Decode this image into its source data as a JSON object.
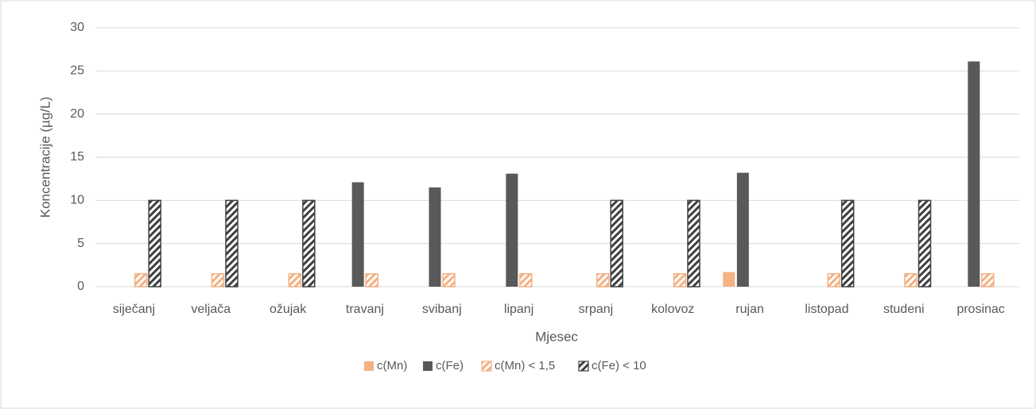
{
  "chart_data": {
    "type": "bar",
    "x_label": "Mjesec",
    "y_label": "Koncentracije (µg/L)",
    "categories": [
      "siječanj",
      "veljača",
      "ožujak",
      "travanj",
      "svibanj",
      "lipanj",
      "srpanj",
      "kolovoz",
      "rujan",
      "listopad",
      "studeni",
      "prosinac"
    ],
    "series": [
      {
        "name": "c(Mn)",
        "color": "#f4b183",
        "hatch": false,
        "values": [
          null,
          null,
          null,
          null,
          null,
          null,
          null,
          null,
          1.7,
          null,
          null,
          null
        ]
      },
      {
        "name": "c(Fe)",
        "color": "#595959",
        "hatch": false,
        "values": [
          null,
          null,
          null,
          12.1,
          11.5,
          13.1,
          null,
          null,
          13.2,
          null,
          null,
          26.1
        ]
      },
      {
        "name": "c(Mn) < 1,5",
        "color": "#f4b183",
        "hatch": true,
        "values": [
          1.5,
          1.5,
          1.5,
          1.5,
          1.5,
          1.5,
          1.5,
          1.5,
          null,
          1.5,
          1.5,
          1.5
        ]
      },
      {
        "name": "c(Fe) < 10",
        "color": "#404040",
        "hatch": true,
        "values": [
          10,
          10,
          10,
          null,
          null,
          null,
          10,
          10,
          null,
          10,
          10,
          null
        ]
      }
    ],
    "ylim": [
      0,
      30
    ],
    "yticks": [
      0,
      5,
      10,
      15,
      20,
      25,
      30
    ],
    "grid": true,
    "legend": "bottom"
  }
}
